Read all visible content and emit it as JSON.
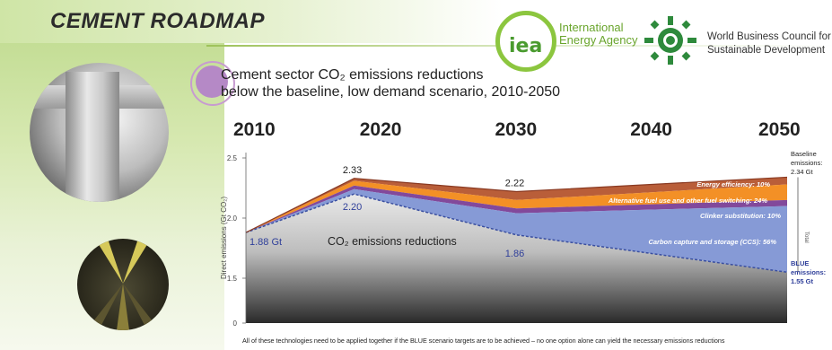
{
  "header": {
    "title": "CEMENT ROADMAP",
    "iea_logo_text": "iea",
    "iea_name_line1": "International",
    "iea_name_line2": "Energy Agency",
    "wbcsd_line1": "World Business Council for",
    "wbcsd_line2": "Sustainable Development"
  },
  "chart_data": {
    "type": "area",
    "title_line1": "Cement sector CO₂ emissions reductions",
    "title_line2": "below the baseline, low demand scenario, 2010-2050",
    "ylabel": "Direct emissions (Gt CO₂)",
    "x": [
      2010,
      2020,
      2030,
      2040,
      2050
    ],
    "year_labels": [
      "2010",
      "2020",
      "2030",
      "2040",
      "2050"
    ],
    "ylim": [
      0,
      2.5
    ],
    "yticks": [
      "0",
      "1.5",
      "2.0",
      "2.5"
    ],
    "anchor_x": [
      2010,
      2018,
      2030,
      2050
    ],
    "baseline": [
      1.88,
      2.33,
      2.22,
      2.34
    ],
    "series": [
      {
        "name": "Energy efficiency: 10%",
        "color": "#b5552e",
        "top": [
          1.88,
          2.33,
          2.22,
          2.34
        ],
        "bottom": [
          1.88,
          2.31,
          2.15,
          2.28
        ]
      },
      {
        "name": "Alternative fuel use and other fuel switching: 24%",
        "color": "#f28a1a",
        "top": [
          1.88,
          2.31,
          2.15,
          2.28
        ],
        "bottom": [
          1.88,
          2.27,
          2.08,
          2.15
        ]
      },
      {
        "name": "Clinker substitution: 10%",
        "color": "#7b3f96",
        "top": [
          1.88,
          2.27,
          2.08,
          2.15
        ],
        "bottom": [
          1.88,
          2.24,
          2.04,
          2.1
        ]
      },
      {
        "name": "Carbon capture and storage (CCS): 56%",
        "color": "#7f95d4",
        "top": [
          1.88,
          2.24,
          2.04,
          2.1
        ],
        "bottom": [
          1.88,
          2.2,
          1.86,
          1.55
        ]
      }
    ],
    "blue": [
      1.88,
      2.2,
      1.86,
      1.55
    ],
    "point_labels": [
      {
        "text": "1.88 Gt",
        "x": 2010,
        "y": 1.88
      },
      {
        "text": "2.33",
        "x": 2018,
        "y": 2.33
      },
      {
        "text": "2.20",
        "x": 2018,
        "y": 2.2
      },
      {
        "text": "2.22",
        "x": 2030,
        "y": 2.22
      },
      {
        "text": "1.86",
        "x": 2030,
        "y": 1.86
      }
    ],
    "area_label": "CO₂ emissions reductions",
    "baseline_label": [
      "Baseline",
      "emissions:",
      "2.34 Gt"
    ],
    "blue_label": [
      "BLUE",
      "emissions:",
      "1.55 Gt"
    ],
    "bracket_label": "Total",
    "footnote": "All of these technologies need to be applied together if the BLUE scenario targets are to be achieved – no one option alone can yield the necessary emissions reductions"
  }
}
